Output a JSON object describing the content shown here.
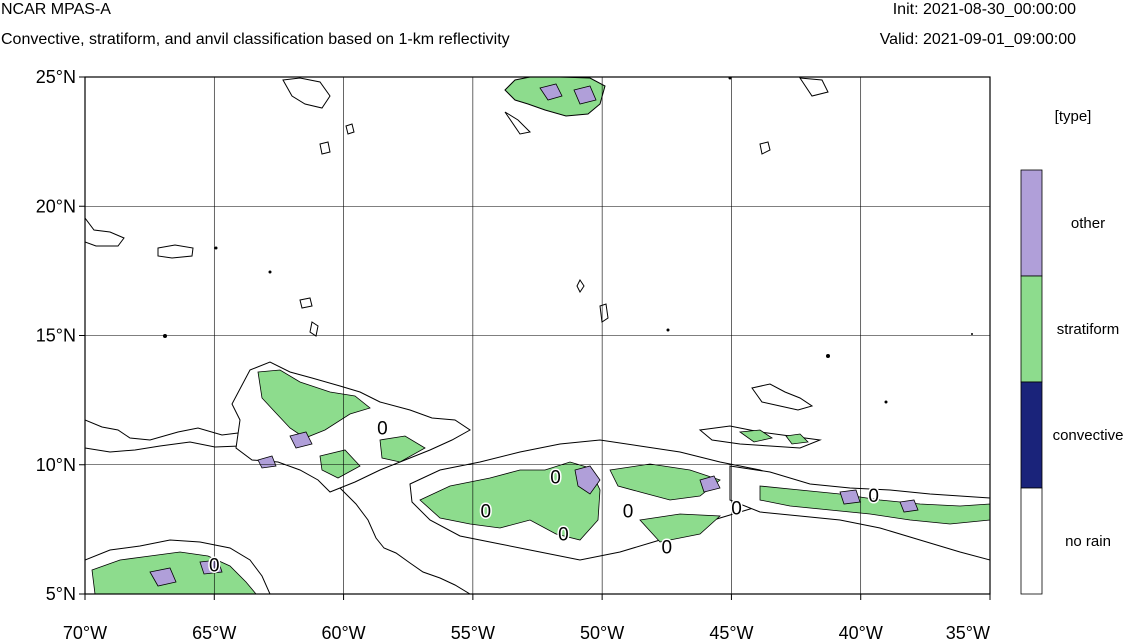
{
  "header": {
    "title": "NCAR MPAS-A",
    "subtitle": "Convective, stratiform, and anvil classification based on 1-km reflectivity",
    "init": "Init: 2021-08-30_00:00:00",
    "valid": "Valid: 2021-09-01_09:00:00"
  },
  "map": {
    "lon_range": [
      -70,
      -35
    ],
    "lat_range": [
      5,
      25
    ],
    "lon_ticks": [
      {
        "value": -70,
        "label": "70°W"
      },
      {
        "value": -65,
        "label": "65°W"
      },
      {
        "value": -60,
        "label": "60°W"
      },
      {
        "value": -55,
        "label": "55°W"
      },
      {
        "value": -50,
        "label": "50°W"
      },
      {
        "value": -45,
        "label": "45°W"
      },
      {
        "value": -40,
        "label": "40°W"
      },
      {
        "value": -35,
        "label": "35°W"
      }
    ],
    "lat_ticks": [
      {
        "value": 25,
        "label": "25°N"
      },
      {
        "value": 20,
        "label": "20°N"
      },
      {
        "value": 15,
        "label": "15°N"
      },
      {
        "value": 10,
        "label": "10°N"
      },
      {
        "value": 5,
        "label": "5°N"
      }
    ],
    "gridlines": true,
    "contour_labels": [
      {
        "lon": -58.5,
        "lat": 11.4,
        "text": "0"
      },
      {
        "lon": -51.8,
        "lat": 9.5,
        "text": "0"
      },
      {
        "lon": -54.5,
        "lat": 8.2,
        "text": "0"
      },
      {
        "lon": -51.5,
        "lat": 7.3,
        "text": "0"
      },
      {
        "lon": -49.0,
        "lat": 8.2,
        "text": "0"
      },
      {
        "lon": -47.5,
        "lat": 6.8,
        "text": "0"
      },
      {
        "lon": -44.8,
        "lat": 8.3,
        "text": "0"
      },
      {
        "lon": -39.5,
        "lat": 8.8,
        "text": "0"
      },
      {
        "lon": -65.0,
        "lat": 6.1,
        "text": "0"
      }
    ]
  },
  "legend": {
    "title": "[type]",
    "categories": [
      {
        "label": "other",
        "color": "#b09fd9"
      },
      {
        "label": "stratiform",
        "color": "#8ddc8d"
      },
      {
        "label": "convective",
        "color": "#1a237a"
      },
      {
        "label": "no rain",
        "color": "#ffffff"
      }
    ]
  }
}
